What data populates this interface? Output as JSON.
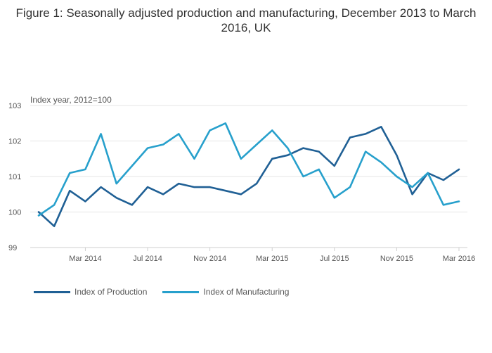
{
  "chart_data": {
    "type": "line",
    "title": "Figure 1: Seasonally adjusted production and manufacturing, December 2013 to March 2016, UK",
    "ylabel": "Index year, 2012=100",
    "xlabel": "",
    "ylim": [
      99,
      103
    ],
    "y_ticks": [
      "99",
      "100",
      "101",
      "102",
      "103"
    ],
    "x": [
      "Dec 2013",
      "Jan 2014",
      "Feb 2014",
      "Mar 2014",
      "Apr 2014",
      "May 2014",
      "Jun 2014",
      "Jul 2014",
      "Aug 2014",
      "Sep 2014",
      "Oct 2014",
      "Nov 2014",
      "Dec 2014",
      "Jan 2015",
      "Feb 2015",
      "Mar 2015",
      "Apr 2015",
      "May 2015",
      "Jun 2015",
      "Jul 2015",
      "Aug 2015",
      "Sep 2015",
      "Oct 2015",
      "Nov 2015",
      "Dec 2015",
      "Jan 2016",
      "Feb 2016",
      "Mar 2016"
    ],
    "x_ticks": [
      {
        "label": "Mar 2014",
        "index": 3
      },
      {
        "label": "Jul 2014",
        "index": 7
      },
      {
        "label": "Nov 2014",
        "index": 11
      },
      {
        "label": "Mar 2015",
        "index": 15
      },
      {
        "label": "Jul 2015",
        "index": 19
      },
      {
        "label": "Nov 2015",
        "index": 23
      },
      {
        "label": "Mar 2016",
        "index": 27
      }
    ],
    "grid": true,
    "legend_position": "bottom-left",
    "series": [
      {
        "name": "Index of Production",
        "color": "#206095",
        "values": [
          100.0,
          99.6,
          100.6,
          100.3,
          100.7,
          100.4,
          100.2,
          100.7,
          100.5,
          100.8,
          100.7,
          100.7,
          100.6,
          100.5,
          100.8,
          101.5,
          101.6,
          101.8,
          101.7,
          101.3,
          102.1,
          102.2,
          102.4,
          101.6,
          100.5,
          101.1,
          100.9,
          101.2
        ]
      },
      {
        "name": "Index of Manufacturing",
        "color": "#27A0CC",
        "values": [
          99.9,
          100.2,
          101.1,
          101.2,
          102.2,
          100.8,
          101.3,
          101.8,
          101.9,
          102.2,
          101.5,
          102.3,
          102.5,
          101.5,
          101.9,
          102.3,
          101.8,
          101.0,
          101.2,
          100.4,
          100.7,
          101.7,
          101.4,
          101.0,
          100.7,
          101.1,
          100.2,
          100.3
        ]
      }
    ]
  }
}
